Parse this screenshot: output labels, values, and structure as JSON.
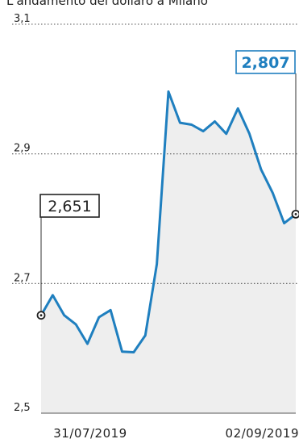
{
  "chart_data": {
    "type": "area",
    "title": "L'andamento del dollaro a Milano",
    "xlabel": "",
    "ylabel": "",
    "ylim": [
      2.5,
      3.1
    ],
    "yticks": [
      {
        "value": 3.1,
        "label": "3,1"
      },
      {
        "value": 2.9,
        "label": "2,9"
      },
      {
        "value": 2.7,
        "label": "2,7"
      },
      {
        "value": 2.5,
        "label": "2,5"
      }
    ],
    "xticks": [
      "31/07/2019",
      "02/09/2019"
    ],
    "series": [
      {
        "values": [
          2.651,
          2.682,
          2.651,
          2.637,
          2.607,
          2.648,
          2.659,
          2.595,
          2.594,
          2.62,
          2.73,
          2.996,
          2.948,
          2.945,
          2.935,
          2.95,
          2.931,
          2.97,
          2.931,
          2.876,
          2.84,
          2.793,
          2.807
        ]
      }
    ],
    "annotations": [
      {
        "label": "2,651",
        "value": 2.651,
        "position": "start"
      },
      {
        "label": "2,807",
        "value": 2.807,
        "position": "end"
      }
    ],
    "grid": "dotted horizontal",
    "colors": {
      "line": "#1f7fbf",
      "area": "#eeeeee",
      "end_label": "#1f7fbf",
      "start_label": "#222222"
    }
  }
}
